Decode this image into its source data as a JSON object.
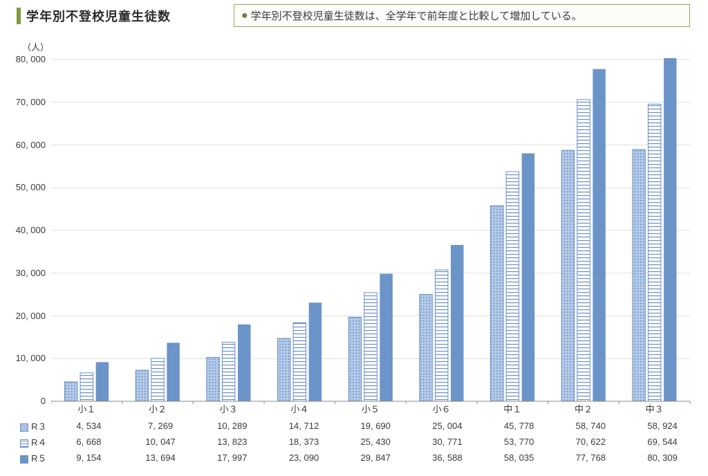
{
  "header": {
    "title": "学年別不登校児童生徒数",
    "y_unit": "（人）",
    "note": "学年別不登校児童生徒数は、全学年で前年度と比較して増加している。"
  },
  "chart": {
    "type": "bar",
    "categories": [
      "小１",
      "小２",
      "小３",
      "小４",
      "小５",
      "小６",
      "中１",
      "中２",
      "中３"
    ],
    "series": [
      {
        "name": "R３",
        "label": "R３",
        "pattern": "dots",
        "color": "#b5cbe8",
        "stroke": "#6b8fc7",
        "values": [
          4534,
          7269,
          10289,
          14712,
          19690,
          25004,
          45778,
          58740,
          58924
        ],
        "value_labels": [
          "4, 534",
          "7, 269",
          "10, 289",
          "14, 712",
          "19, 690",
          "25, 004",
          "45, 778",
          "58, 740",
          "58, 924"
        ]
      },
      {
        "name": "R４",
        "label": "R４",
        "pattern": "hstripe",
        "color": "#ffffff",
        "stroke": "#6b8fc7",
        "values": [
          6668,
          10047,
          13823,
          18373,
          25430,
          30771,
          53770,
          70622,
          69544
        ],
        "value_labels": [
          "6, 668",
          "10, 047",
          "13, 823",
          "18, 373",
          "25, 430",
          "30, 771",
          "53, 770",
          "70, 622",
          "69, 544"
        ]
      },
      {
        "name": "R５",
        "label": "R５",
        "pattern": "solid",
        "color": "#6b94c9",
        "stroke": "#6b94c9",
        "values": [
          9154,
          13694,
          17997,
          23090,
          29847,
          36588,
          58035,
          77768,
          80309
        ],
        "value_labels": [
          "9, 154",
          "13, 694",
          "17, 997",
          "23, 090",
          "29, 847",
          "36, 588",
          "58, 035",
          "77, 768",
          "80, 309"
        ]
      }
    ],
    "y_axis": {
      "min": 0,
      "max": 80000,
      "step": 10000,
      "tick_labels": [
        "0",
        "10, 000",
        "20, 000",
        "30, 000",
        "40, 000",
        "50, 000",
        "60, 000",
        "70, 000",
        "80, 000"
      ]
    },
    "style": {
      "background_color": "#ffffff",
      "grid_color": "#dce3d6",
      "axis_color": "#888888",
      "tick_color": "#888888",
      "label_color": "#3a3a3a",
      "label_fontsize": 13,
      "bar_group_gap": 0.38,
      "bar_inner_gap": 0.04
    }
  }
}
